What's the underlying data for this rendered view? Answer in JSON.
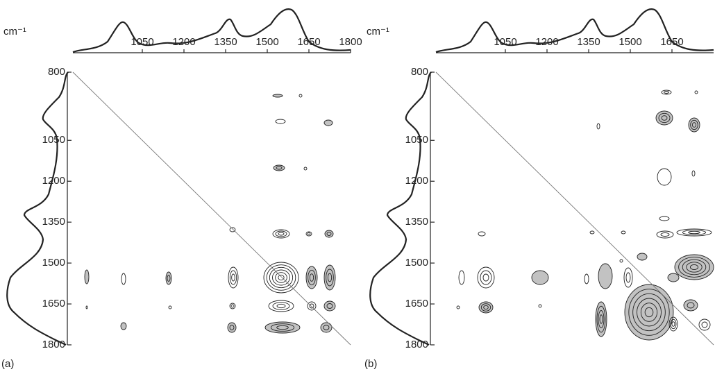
{
  "chart_data": [
    {
      "type": "contour",
      "title": "(a)",
      "axis_label": "cm⁻¹",
      "xlim": [
        800,
        1800
      ],
      "ylim": [
        800,
        1800
      ],
      "xticks": [
        1050,
        1200,
        1350,
        1500,
        1650,
        1800
      ],
      "yticks": [
        800,
        1050,
        1200,
        1350,
        1500,
        1650,
        1800
      ]
    },
    {
      "type": "contour",
      "title": "(b)",
      "axis_label": "cm⁻¹",
      "xlim": [
        800,
        1800
      ],
      "ylim": [
        800,
        1800
      ],
      "xticks": [
        1050,
        1200,
        1350,
        1500,
        1650
      ],
      "yticks": [
        800,
        1050,
        1200,
        1350,
        1500,
        1650,
        1800
      ]
    }
  ]
}
